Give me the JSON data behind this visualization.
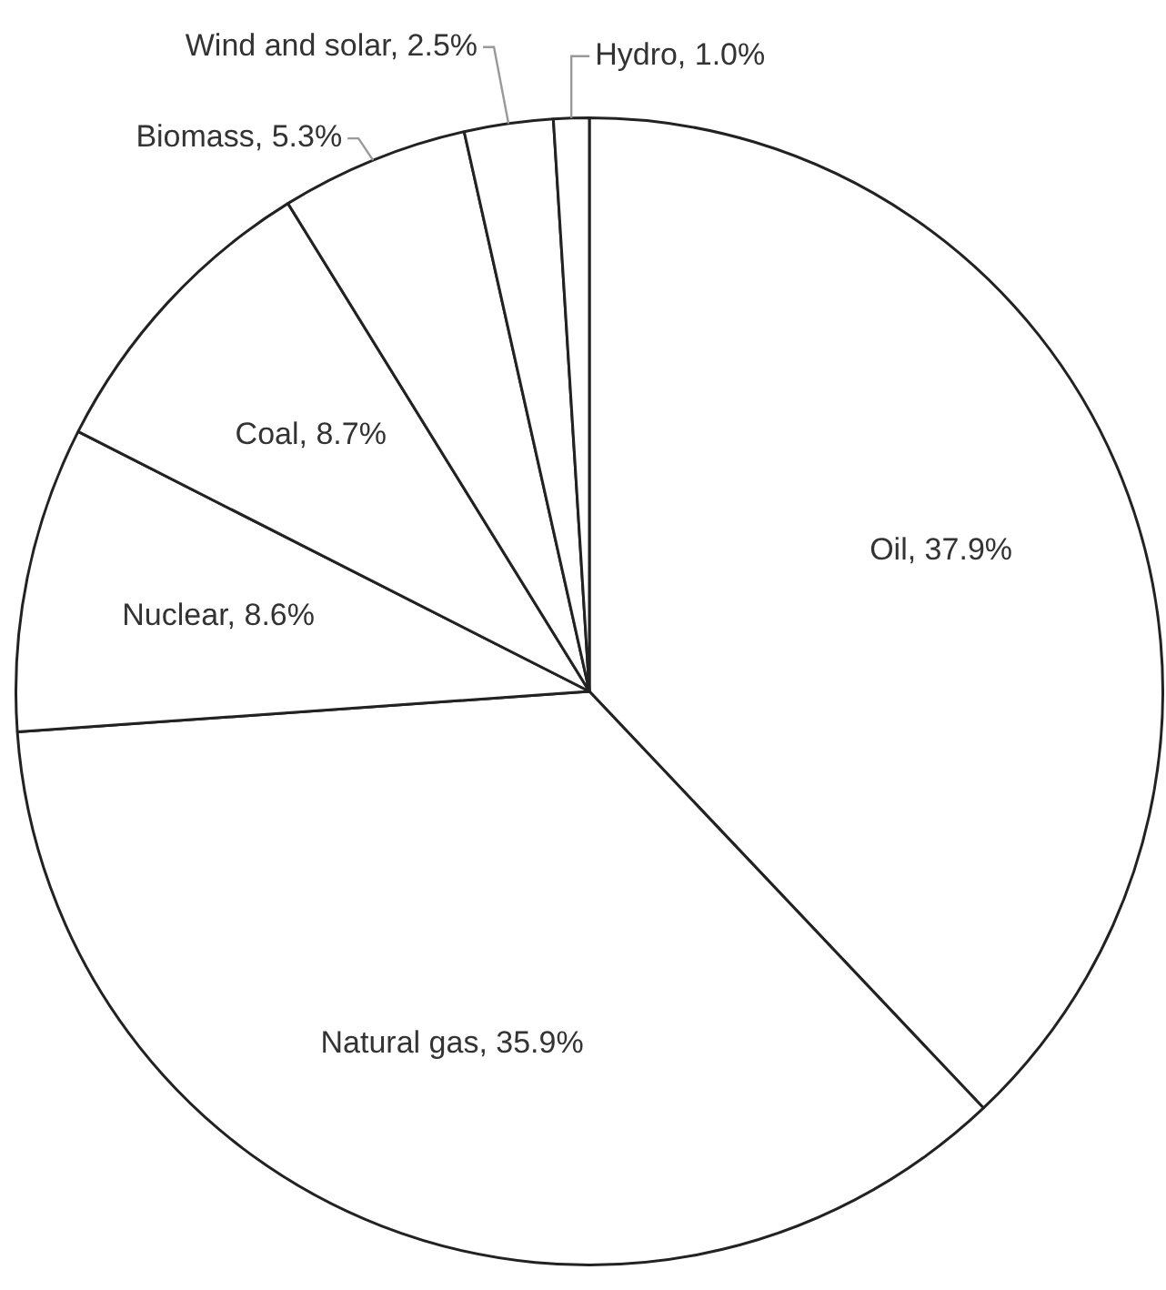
{
  "chart_data": {
    "type": "pie",
    "categories": [
      "Oil",
      "Natural gas",
      "Nuclear",
      "Coal",
      "Biomass",
      "Wind and solar",
      "Hydro"
    ],
    "values": [
      37.9,
      35.9,
      8.6,
      8.7,
      5.3,
      2.5,
      1.0
    ],
    "value_labels": [
      "37.9%",
      "35.9%",
      "8.6%",
      "8.7%",
      "5.3%",
      "2.5%",
      "1.0%"
    ],
    "colors": [
      "#ffffff",
      "#ffffff",
      "#ffffff",
      "#ffffff",
      "#ffffff",
      "#ffffff",
      "#ffffff"
    ],
    "legend": false
  }
}
